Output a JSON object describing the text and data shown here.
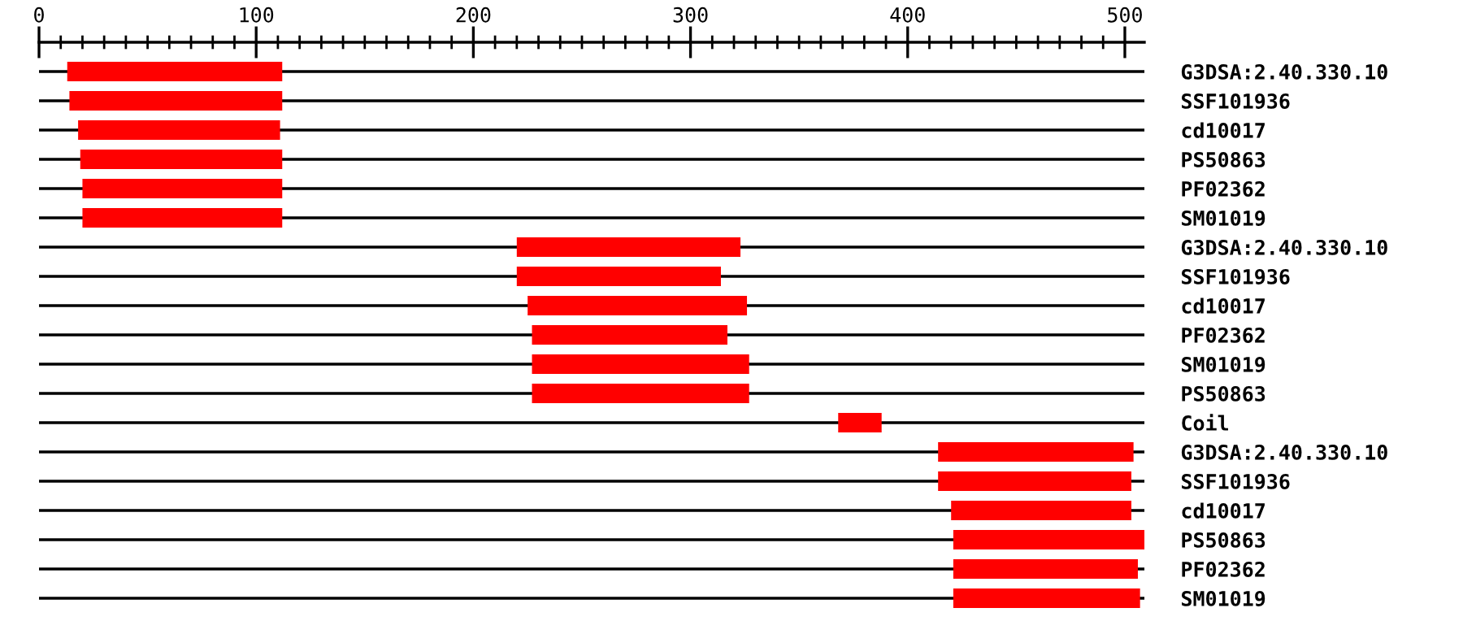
{
  "chart_data": {
    "type": "bar",
    "orientation": "horizontal",
    "categories": [
      "G3DSA:2.40.330.10",
      "SSF101936",
      "cd10017",
      "PS50863",
      "PF02362",
      "SM01019",
      "G3DSA:2.40.330.10",
      "SSF101936",
      "cd10017",
      "PF02362",
      "SM01019",
      "PS50863",
      "Coil",
      "G3DSA:2.40.330.10",
      "SSF101936",
      "cd10017",
      "PS50863",
      "PF02362",
      "SM01019"
    ],
    "series": [
      {
        "color": "#ff0000",
        "base": [
          13,
          14,
          18,
          19,
          20,
          20,
          220,
          220,
          225,
          227,
          227,
          227,
          368,
          414,
          414,
          420,
          421,
          421,
          421
        ],
        "values": [
          99,
          98,
          93,
          93,
          92,
          92,
          103,
          94,
          101,
          90,
          100,
          100,
          20,
          90,
          89,
          83,
          88,
          85,
          86
        ]
      }
    ],
    "xlim": [
      0,
      509
    ],
    "xticks": [
      0,
      {
        "value": 10,
        "label": null
      },
      {
        "value": 20,
        "label": null
      },
      {
        "value": 30,
        "label": null
      },
      {
        "value": 40,
        "label": null
      },
      {
        "value": 50,
        "label": null
      },
      {
        "value": 60,
        "label": null
      },
      {
        "value": 70,
        "label": null
      },
      {
        "value": 80,
        "label": null
      },
      {
        "value": 90,
        "label": null
      },
      100,
      {
        "value": 110,
        "label": null
      },
      {
        "value": 120,
        "label": null
      },
      {
        "value": 130,
        "label": null
      },
      {
        "value": 140,
        "label": null
      },
      {
        "value": 150,
        "label": null
      },
      {
        "value": 160,
        "label": null
      },
      {
        "value": 170,
        "label": null
      },
      {
        "value": 180,
        "label": null
      },
      {
        "value": 190,
        "label": null
      },
      200,
      {
        "value": 210,
        "label": null
      },
      {
        "value": 220,
        "label": null
      },
      {
        "value": 230,
        "label": null
      },
      {
        "value": 240,
        "label": null
      },
      {
        "value": 250,
        "label": null
      },
      {
        "value": 260,
        "label": null
      },
      {
        "value": 270,
        "label": null
      },
      {
        "value": 280,
        "label": null
      },
      {
        "value": 290,
        "label": null
      },
      300,
      {
        "value": 310,
        "label": null
      },
      {
        "value": 320,
        "label": null
      },
      {
        "value": 330,
        "label": null
      },
      {
        "value": 340,
        "label": null
      },
      {
        "value": 350,
        "label": null
      },
      {
        "value": 360,
        "label": null
      },
      {
        "value": 370,
        "label": null
      },
      {
        "value": 380,
        "label": null
      },
      {
        "value": 390,
        "label": null
      },
      400,
      {
        "value": 410,
        "label": null
      },
      {
        "value": 420,
        "label": null
      },
      {
        "value": 430,
        "label": null
      },
      {
        "value": 440,
        "label": null
      },
      {
        "value": 450,
        "label": null
      },
      {
        "value": 460,
        "label": null
      },
      {
        "value": 470,
        "label": null
      },
      {
        "value": 480,
        "label": null
      },
      {
        "value": 490,
        "label": null
      },
      500
    ],
    "grid": "y",
    "legend": false
  }
}
